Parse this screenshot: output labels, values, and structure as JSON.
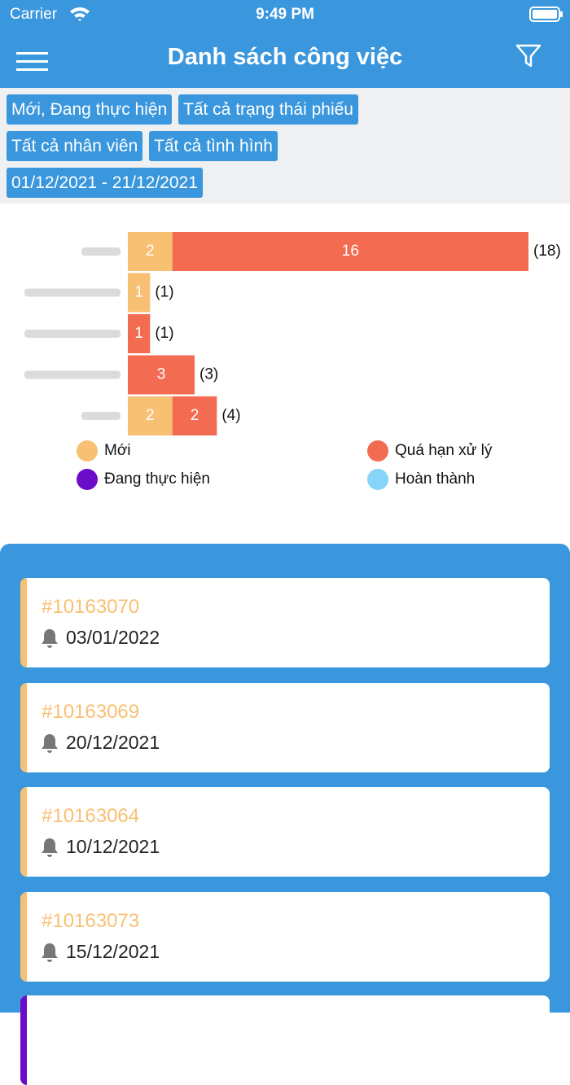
{
  "status_bar": {
    "carrier": "Carrier",
    "time": "9:49 PM"
  },
  "header": {
    "title": "Danh sách công việc"
  },
  "filters": [
    [
      "Mới, Đang thực hiện",
      "Tất cả trạng thái phiếu"
    ],
    [
      "Tất cả nhân viên",
      "Tất cả tình hình"
    ],
    [
      "01/12/2021 - 21/12/2021"
    ]
  ],
  "chart_data": {
    "type": "stacked_barh",
    "categories": [
      null,
      null,
      null,
      null,
      null
    ],
    "series": [
      {
        "name": "Mới",
        "color": "#f8c073",
        "values": [
          2,
          1,
          null,
          null,
          2
        ]
      },
      {
        "name": "Quá hạn xử lý",
        "color": "#f36c52",
        "values": [
          16,
          null,
          1,
          3,
          2
        ]
      },
      {
        "name": "Đang thực hiện",
        "color": "#6a0cc8",
        "values": [
          null,
          null,
          null,
          null,
          null
        ]
      },
      {
        "name": "Hoàn thành",
        "color": "#86d4f8",
        "values": [
          null,
          null,
          null,
          null,
          null
        ]
      }
    ],
    "totals": [
      18,
      1,
      1,
      3,
      4
    ],
    "total_labels": [
      "(18)",
      "(1)",
      "(1)",
      "(3)",
      "(4)"
    ]
  },
  "tasks": [
    {
      "id": "#10163070",
      "date": "03/01/2022"
    },
    {
      "id": "#10163069",
      "date": "20/12/2021"
    },
    {
      "id": "#10163064",
      "date": "10/12/2021"
    },
    {
      "id": "#10163073",
      "date": "15/12/2021"
    }
  ]
}
